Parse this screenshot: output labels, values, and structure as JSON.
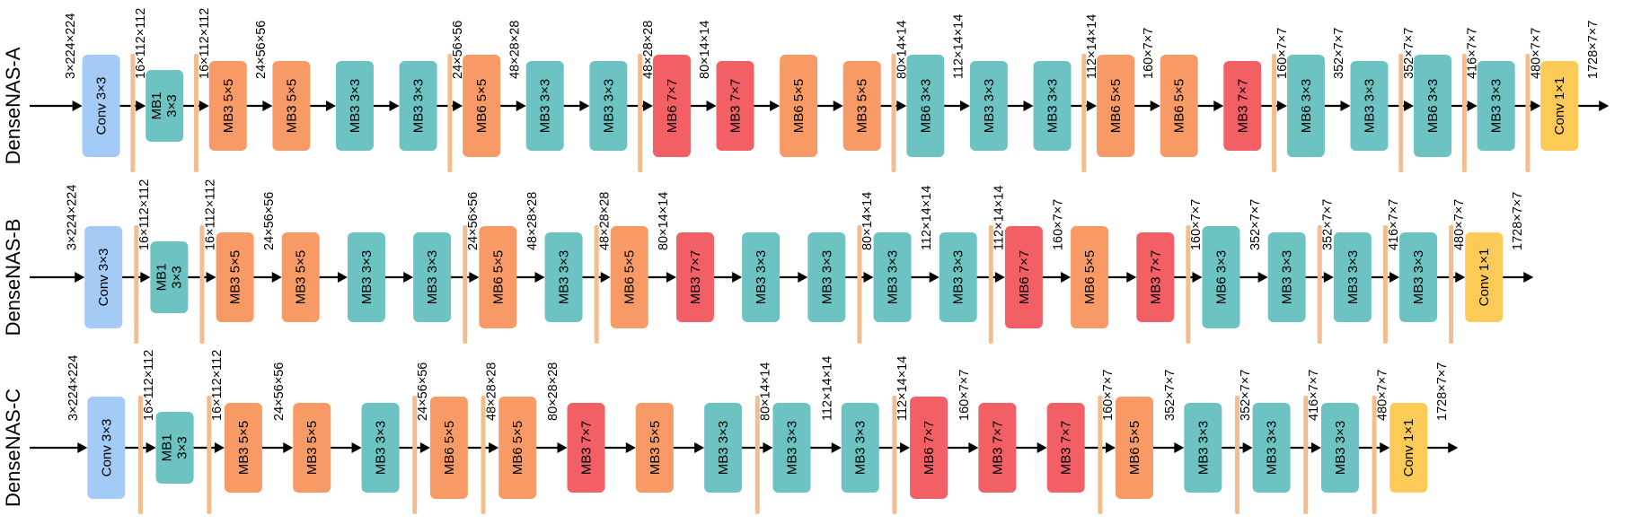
{
  "colors": {
    "conv": "#a3cbf6",
    "mb": "#6dc3c2",
    "mb5": "#f89a66",
    "mb7": "#f25f64",
    "conv1": "#fcca57",
    "sep": "#f3bd90",
    "arrow": "#000000",
    "text": "#000000"
  },
  "rows": [
    {
      "title": "DenseNAS-A",
      "items": [
        {
          "k": "dim",
          "t": "3×224×224"
        },
        {
          "k": "blk",
          "t": "Conv 3×3",
          "c": "conv",
          "h": "L"
        },
        {
          "k": "sep",
          "t": "16×112×112"
        },
        {
          "k": "blk",
          "t": "MB1 3×3",
          "c": "mb",
          "h": "S"
        },
        {
          "k": "sep",
          "t": "16×112×112"
        },
        {
          "k": "blk",
          "t": "MB3 5×5",
          "c": "mb5",
          "h": "M"
        },
        {
          "k": "dim",
          "t": "24×56×56"
        },
        {
          "k": "blk",
          "t": "MB3 5×5",
          "c": "mb5",
          "h": "M"
        },
        {
          "k": "gap"
        },
        {
          "k": "blk",
          "t": "MB3 3×3",
          "c": "mb",
          "h": "M"
        },
        {
          "k": "gap"
        },
        {
          "k": "blk",
          "t": "MB3 3×3",
          "c": "mb",
          "h": "M"
        },
        {
          "k": "sep",
          "t": "24×56×56"
        },
        {
          "k": "blk",
          "t": "MB6 5×5",
          "c": "mb5",
          "h": "L"
        },
        {
          "k": "dim",
          "t": "48×28×28"
        },
        {
          "k": "blk",
          "t": "MB3 3×3",
          "c": "mb",
          "h": "M"
        },
        {
          "k": "gap"
        },
        {
          "k": "blk",
          "t": "MB3 3×3",
          "c": "mb",
          "h": "M"
        },
        {
          "k": "sep",
          "t": "48×28×28"
        },
        {
          "k": "blk",
          "t": "MB6 7×7",
          "c": "mb7",
          "h": "L"
        },
        {
          "k": "dim",
          "t": "80×14×14"
        },
        {
          "k": "blk",
          "t": "MB3 7×7",
          "c": "mb7",
          "h": "M"
        },
        {
          "k": "gap"
        },
        {
          "k": "blk",
          "t": "MB6 5×5",
          "c": "mb5",
          "h": "L"
        },
        {
          "k": "gap"
        },
        {
          "k": "blk",
          "t": "MB3 5×5",
          "c": "mb5",
          "h": "M"
        },
        {
          "k": "sep",
          "t": "80×14×14"
        },
        {
          "k": "blk",
          "t": "MB6 3×3",
          "c": "mb",
          "h": "L"
        },
        {
          "k": "dim",
          "t": "112×14×14"
        },
        {
          "k": "blk",
          "t": "MB3 3×3",
          "c": "mb",
          "h": "M"
        },
        {
          "k": "gap"
        },
        {
          "k": "blk",
          "t": "MB3 3×3",
          "c": "mb",
          "h": "M"
        },
        {
          "k": "sep",
          "t": "112×14×14"
        },
        {
          "k": "blk",
          "t": "MB6 5×5",
          "c": "mb5",
          "h": "L"
        },
        {
          "k": "dim",
          "t": "160×7×7"
        },
        {
          "k": "blk",
          "t": "MB6 5×5",
          "c": "mb5",
          "h": "L"
        },
        {
          "k": "gap"
        },
        {
          "k": "blk",
          "t": "MB3 7×7",
          "c": "mb7",
          "h": "M"
        },
        {
          "k": "sep",
          "t": "160×7×7"
        },
        {
          "k": "blk",
          "t": "MB6 3×3",
          "c": "mb",
          "h": "L"
        },
        {
          "k": "dim",
          "t": "352×7×7"
        },
        {
          "k": "blk",
          "t": "MB3 3×3",
          "c": "mb",
          "h": "M"
        },
        {
          "k": "sep",
          "t": "352×7×7"
        },
        {
          "k": "blk",
          "t": "MB6 3×3",
          "c": "mb",
          "h": "L"
        },
        {
          "k": "sep",
          "t": "416×7×7"
        },
        {
          "k": "blk",
          "t": "MB3 3×3",
          "c": "mb",
          "h": "M"
        },
        {
          "k": "sep",
          "t": "480×7×7"
        },
        {
          "k": "blk",
          "t": "Conv 1×1",
          "c": "conv1",
          "h": "M"
        },
        {
          "k": "end",
          "t": "1728×7×7"
        }
      ]
    },
    {
      "title": "DenseNAS-B",
      "items": [
        {
          "k": "dim",
          "t": "3×224×224"
        },
        {
          "k": "blk",
          "t": "Conv 3×3",
          "c": "conv",
          "h": "L"
        },
        {
          "k": "sep",
          "t": "16×112×112"
        },
        {
          "k": "blk",
          "t": "MB1 3×3",
          "c": "mb",
          "h": "S"
        },
        {
          "k": "sep",
          "t": "16×112×112"
        },
        {
          "k": "blk",
          "t": "MB3 5×5",
          "c": "mb5",
          "h": "M"
        },
        {
          "k": "dim",
          "t": "24×56×56"
        },
        {
          "k": "blk",
          "t": "MB3 5×5",
          "c": "mb5",
          "h": "M"
        },
        {
          "k": "gap"
        },
        {
          "k": "blk",
          "t": "MB3 3×3",
          "c": "mb",
          "h": "M"
        },
        {
          "k": "gap"
        },
        {
          "k": "blk",
          "t": "MB3 3×3",
          "c": "mb",
          "h": "M"
        },
        {
          "k": "sep",
          "t": "24×56×56"
        },
        {
          "k": "blk",
          "t": "MB6 5×5",
          "c": "mb5",
          "h": "L"
        },
        {
          "k": "dim",
          "t": "48×28×28"
        },
        {
          "k": "blk",
          "t": "MB3 3×3",
          "c": "mb",
          "h": "M"
        },
        {
          "k": "sep",
          "t": "48×28×28"
        },
        {
          "k": "blk",
          "t": "MB6 5×5",
          "c": "mb5",
          "h": "L"
        },
        {
          "k": "dim",
          "t": "80×14×14"
        },
        {
          "k": "blk",
          "t": "MB3 7×7",
          "c": "mb7",
          "h": "M"
        },
        {
          "k": "gap"
        },
        {
          "k": "blk",
          "t": "MB3 3×3",
          "c": "mb",
          "h": "M"
        },
        {
          "k": "gap"
        },
        {
          "k": "blk",
          "t": "MB3 3×3",
          "c": "mb",
          "h": "M"
        },
        {
          "k": "sep",
          "t": "80×14×14"
        },
        {
          "k": "blk",
          "t": "MB3 3×3",
          "c": "mb",
          "h": "M"
        },
        {
          "k": "dim",
          "t": "112×14×14"
        },
        {
          "k": "blk",
          "t": "MB3 3×3",
          "c": "mb",
          "h": "M"
        },
        {
          "k": "sep",
          "t": "112×14×14"
        },
        {
          "k": "blk",
          "t": "MB6 7×7",
          "c": "mb7",
          "h": "L"
        },
        {
          "k": "dim",
          "t": "160×7×7"
        },
        {
          "k": "blk",
          "t": "MB6 5×5",
          "c": "mb5",
          "h": "L"
        },
        {
          "k": "gap"
        },
        {
          "k": "blk",
          "t": "MB3 7×7",
          "c": "mb7",
          "h": "M"
        },
        {
          "k": "sep",
          "t": "160×7×7"
        },
        {
          "k": "blk",
          "t": "MB6 3×3",
          "c": "mb",
          "h": "L"
        },
        {
          "k": "dim",
          "t": "352×7×7"
        },
        {
          "k": "blk",
          "t": "MB3 3×3",
          "c": "mb",
          "h": "M"
        },
        {
          "k": "sep",
          "t": "352×7×7"
        },
        {
          "k": "blk",
          "t": "MB3 3×3",
          "c": "mb",
          "h": "M"
        },
        {
          "k": "sep",
          "t": "416×7×7"
        },
        {
          "k": "blk",
          "t": "MB3 3×3",
          "c": "mb",
          "h": "M"
        },
        {
          "k": "sep",
          "t": "480×7×7"
        },
        {
          "k": "blk",
          "t": "Conv 1×1",
          "c": "conv1",
          "h": "M"
        },
        {
          "k": "end",
          "t": "1728×7×7"
        }
      ]
    },
    {
      "title": "DenseNAS-C",
      "items": [
        {
          "k": "dim",
          "t": "3×224×224"
        },
        {
          "k": "blk",
          "t": "Conv 3×3",
          "c": "conv",
          "h": "L"
        },
        {
          "k": "sep",
          "t": "16×112×112"
        },
        {
          "k": "blk",
          "t": "MB1 3×3",
          "c": "mb",
          "h": "S"
        },
        {
          "k": "sep",
          "t": "16×112×112"
        },
        {
          "k": "blk",
          "t": "MB3 5×5",
          "c": "mb5",
          "h": "M"
        },
        {
          "k": "dim",
          "t": "24×56×56"
        },
        {
          "k": "blk",
          "t": "MB3 5×5",
          "c": "mb5",
          "h": "M"
        },
        {
          "k": "gap"
        },
        {
          "k": "blk",
          "t": "MB3 3×3",
          "c": "mb",
          "h": "M"
        },
        {
          "k": "sep",
          "t": "24×56×56"
        },
        {
          "k": "blk",
          "t": "MB6 5×5",
          "c": "mb5",
          "h": "L"
        },
        {
          "k": "sep",
          "t": "48×28×28"
        },
        {
          "k": "blk",
          "t": "MB6 5×5",
          "c": "mb5",
          "h": "L"
        },
        {
          "k": "dim",
          "t": "80×28×28"
        },
        {
          "k": "blk",
          "t": "MB3 7×7",
          "c": "mb7",
          "h": "M"
        },
        {
          "k": "gap"
        },
        {
          "k": "blk",
          "t": "MB3 5×5",
          "c": "mb5",
          "h": "M"
        },
        {
          "k": "gap"
        },
        {
          "k": "blk",
          "t": "MB3 3×3",
          "c": "mb",
          "h": "M"
        },
        {
          "k": "sep",
          "t": "80×14×14"
        },
        {
          "k": "blk",
          "t": "MB3 3×3",
          "c": "mb",
          "h": "M"
        },
        {
          "k": "dim",
          "t": "112×14×14"
        },
        {
          "k": "blk",
          "t": "MB3 3×3",
          "c": "mb",
          "h": "M"
        },
        {
          "k": "sep",
          "t": "112×14×14"
        },
        {
          "k": "blk",
          "t": "MB6 7×7",
          "c": "mb7",
          "h": "L"
        },
        {
          "k": "dim",
          "t": "160×7×7"
        },
        {
          "k": "blk",
          "t": "MB3 7×7",
          "c": "mb7",
          "h": "M"
        },
        {
          "k": "gap"
        },
        {
          "k": "blk",
          "t": "MB3 7×7",
          "c": "mb7",
          "h": "M"
        },
        {
          "k": "sep",
          "t": "160×7×7"
        },
        {
          "k": "blk",
          "t": "MB6 5×5",
          "c": "mb5",
          "h": "L"
        },
        {
          "k": "dim",
          "t": "352×7×7"
        },
        {
          "k": "blk",
          "t": "MB3 3×3",
          "c": "mb",
          "h": "M"
        },
        {
          "k": "sep",
          "t": "352×7×7"
        },
        {
          "k": "blk",
          "t": "MB3 3×3",
          "c": "mb",
          "h": "M"
        },
        {
          "k": "sep",
          "t": "416×7×7"
        },
        {
          "k": "blk",
          "t": "MB3 3×3",
          "c": "mb",
          "h": "M"
        },
        {
          "k": "sep",
          "t": "480×7×7"
        },
        {
          "k": "blk",
          "t": "Conv 1×1",
          "c": "conv1",
          "h": "M"
        },
        {
          "k": "end",
          "t": "1728×7×7"
        }
      ]
    }
  ]
}
